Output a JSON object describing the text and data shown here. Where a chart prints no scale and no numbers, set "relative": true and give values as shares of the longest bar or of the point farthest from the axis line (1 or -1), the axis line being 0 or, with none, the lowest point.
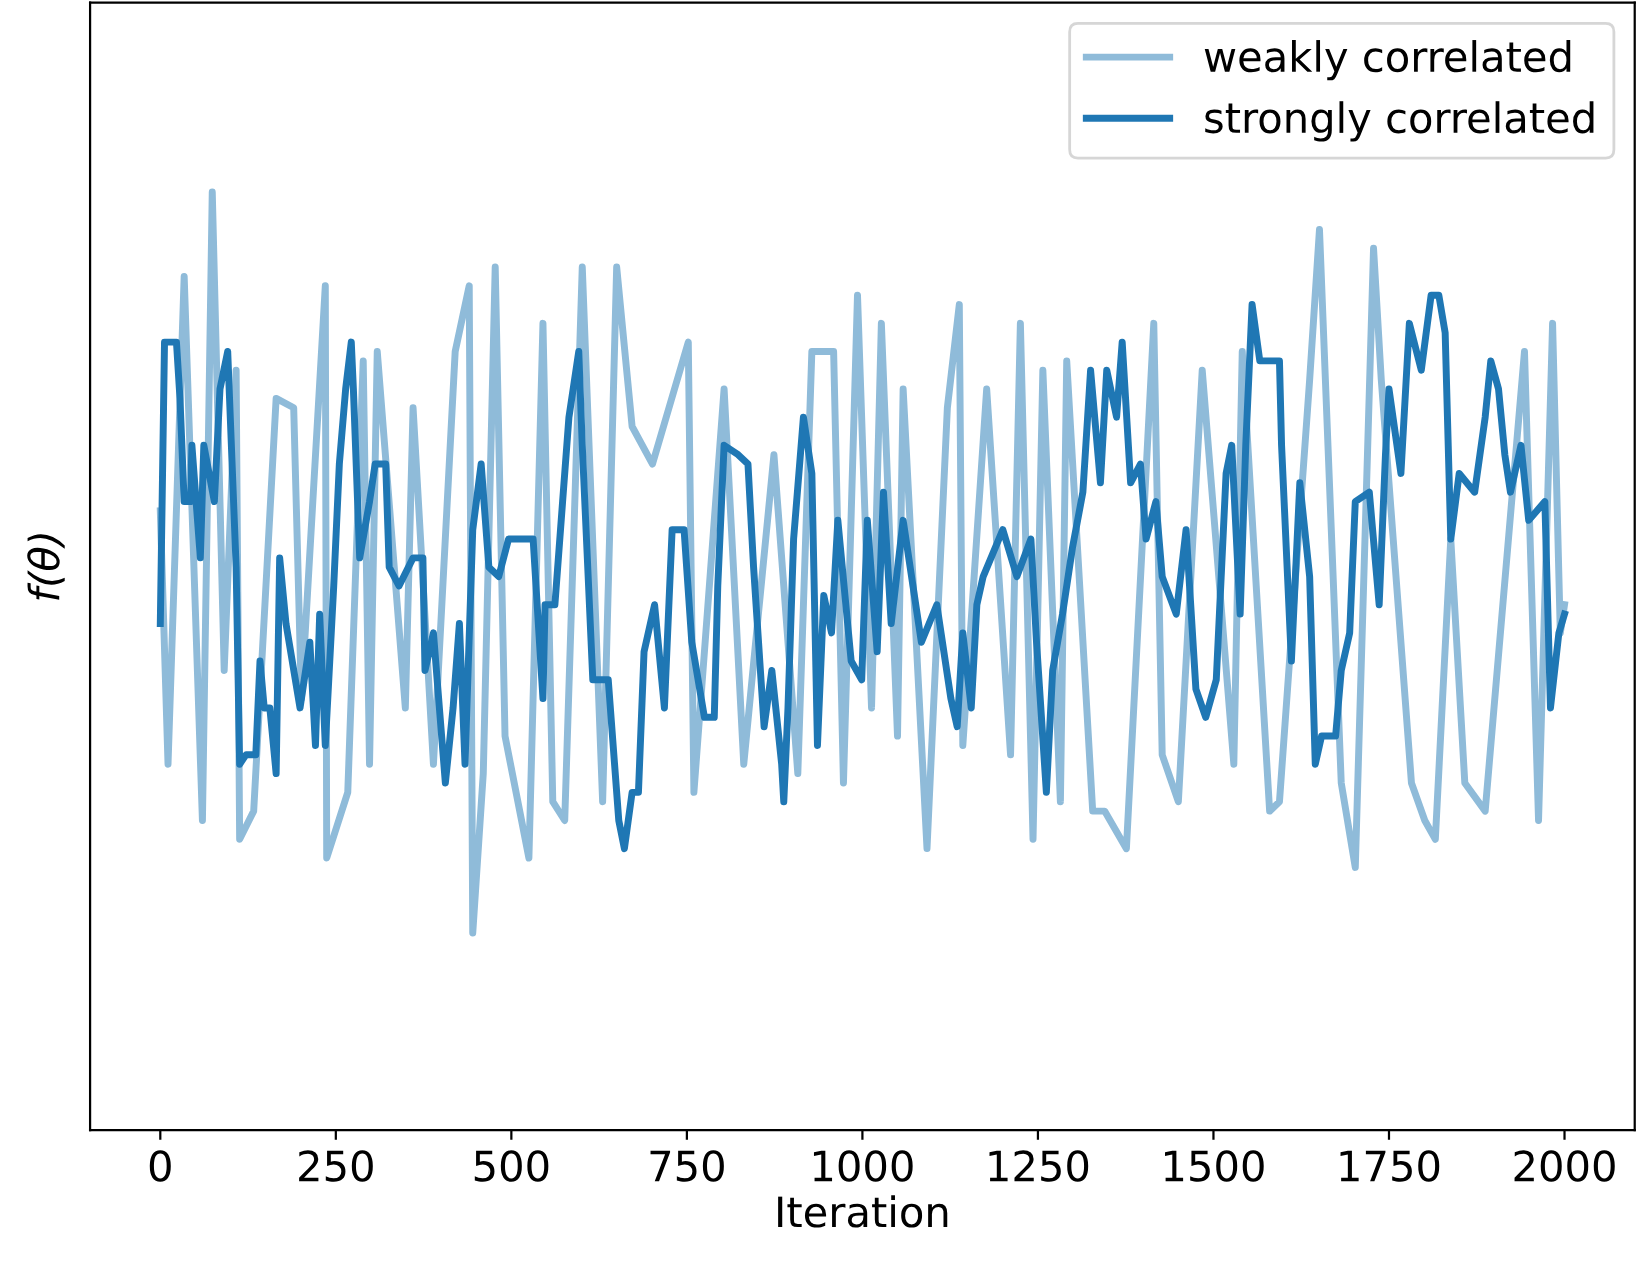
{
  "chart_data": {
    "type": "line",
    "relative": true,
    "xlabel": "Iteration",
    "ylabel": "f(θ)",
    "xlim": [
      -100,
      2100
    ],
    "xticks": [
      0,
      250,
      500,
      750,
      1000,
      1250,
      1500,
      1750,
      2000
    ],
    "grid": false,
    "legend": "top right",
    "marker": "none",
    "line_style": "solid",
    "tick_labels": "x",
    "series": [
      {
        "name": "weakly correlated",
        "color": "#8fbbd9",
        "x": [
          0,
          11,
          34,
          60,
          74,
          91,
          108,
          113,
          133,
          165,
          190,
          201,
          235,
          237,
          267,
          289,
          298,
          309,
          349,
          360,
          389,
          420,
          440,
          445,
          460,
          477,
          491,
          525,
          545,
          559,
          576,
          601,
          630,
          650,
          672,
          701,
          752,
          760,
          803,
          831,
          874,
          908,
          928,
          959,
          973,
          993,
          1013,
          1027,
          1050,
          1058,
          1092,
          1121,
          1138,
          1143,
          1177,
          1211,
          1225,
          1243,
          1257,
          1282,
          1291,
          1328,
          1345,
          1376,
          1415,
          1427,
          1450,
          1484,
          1529,
          1541,
          1580,
          1594,
          1637,
          1651,
          1682,
          1702,
          1728,
          1739,
          1782,
          1801,
          1816,
          1838,
          1858,
          1887,
          1943,
          1963,
          1983,
          1994,
          2000
        ],
        "values": [
          0.66,
          0.39,
          0.91,
          0.33,
          1.0,
          0.49,
          0.81,
          0.31,
          0.34,
          0.78,
          0.77,
          0.46,
          0.9,
          0.29,
          0.36,
          0.82,
          0.39,
          0.83,
          0.45,
          0.77,
          0.39,
          0.83,
          0.9,
          0.21,
          0.38,
          0.92,
          0.42,
          0.29,
          0.86,
          0.35,
          0.33,
          0.92,
          0.35,
          0.92,
          0.75,
          0.71,
          0.84,
          0.36,
          0.79,
          0.39,
          0.72,
          0.38,
          0.83,
          0.83,
          0.37,
          0.89,
          0.45,
          0.86,
          0.42,
          0.79,
          0.3,
          0.77,
          0.88,
          0.41,
          0.79,
          0.4,
          0.86,
          0.31,
          0.81,
          0.35,
          0.82,
          0.34,
          0.34,
          0.3,
          0.86,
          0.4,
          0.35,
          0.81,
          0.39,
          0.83,
          0.34,
          0.35,
          0.8,
          0.96,
          0.37,
          0.28,
          0.94,
          0.8,
          0.37,
          0.33,
          0.31,
          0.63,
          0.37,
          0.34,
          0.83,
          0.33,
          0.86,
          0.53,
          0.56
        ]
      },
      {
        "name": "strongly correlated",
        "color": "#1f77b4",
        "x": [
          0,
          6,
          23,
          28,
          34,
          43,
          45,
          57,
          62,
          77,
          85,
          96,
          108,
          113,
          122,
          136,
          142,
          148,
          156,
          165,
          170,
          179,
          199,
          213,
          221,
          227,
          235,
          247,
          255,
          264,
          272,
          275,
          284,
          298,
          306,
          321,
          326,
          340,
          360,
          374,
          377,
          389,
          406,
          417,
          426,
          434,
          445,
          457,
          468,
          482,
          496,
          531,
          545,
          548,
          562,
          573,
          582,
          596,
          601,
          616,
          638,
          653,
          661,
          672,
          681,
          689,
          704,
          718,
          729,
          746,
          757,
          775,
          789,
          794,
          803,
          823,
          837,
          845,
          860,
          871,
          885,
          888,
          894,
          902,
          916,
          928,
          936,
          945,
          956,
          965,
          984,
          999,
          1007,
          1021,
          1030,
          1041,
          1058,
          1084,
          1106,
          1126,
          1135,
          1143,
          1155,
          1163,
          1172,
          1200,
          1220,
          1240,
          1248,
          1262,
          1271,
          1285,
          1299,
          1314,
          1325,
          1339,
          1348,
          1362,
          1370,
          1382,
          1396,
          1404,
          1418,
          1427,
          1447,
          1461,
          1475,
          1489,
          1504,
          1518,
          1526,
          1538,
          1546,
          1555,
          1566,
          1594,
          1597,
          1611,
          1623,
          1637,
          1645,
          1654,
          1674,
          1682,
          1694,
          1702,
          1722,
          1736,
          1745,
          1750,
          1767,
          1779,
          1796,
          1810,
          1821,
          1830,
          1838,
          1850,
          1872,
          1887,
          1895,
          1906,
          1915,
          1923,
          1938,
          1949,
          1972,
          1980,
          1992,
          2000
        ],
        "values": [
          0.54,
          0.84,
          0.84,
          0.78,
          0.67,
          0.67,
          0.73,
          0.61,
          0.73,
          0.67,
          0.79,
          0.83,
          0.6,
          0.39,
          0.4,
          0.4,
          0.5,
          0.45,
          0.45,
          0.38,
          0.61,
          0.54,
          0.45,
          0.52,
          0.41,
          0.55,
          0.41,
          0.58,
          0.71,
          0.79,
          0.84,
          0.79,
          0.61,
          0.67,
          0.71,
          0.71,
          0.6,
          0.58,
          0.61,
          0.61,
          0.49,
          0.53,
          0.37,
          0.45,
          0.54,
          0.39,
          0.64,
          0.71,
          0.6,
          0.59,
          0.63,
          0.63,
          0.46,
          0.56,
          0.56,
          0.67,
          0.76,
          0.83,
          0.73,
          0.48,
          0.48,
          0.33,
          0.3,
          0.36,
          0.36,
          0.51,
          0.56,
          0.45,
          0.64,
          0.64,
          0.52,
          0.44,
          0.44,
          0.58,
          0.73,
          0.72,
          0.71,
          0.6,
          0.43,
          0.49,
          0.39,
          0.35,
          0.45,
          0.63,
          0.76,
          0.7,
          0.41,
          0.57,
          0.53,
          0.65,
          0.5,
          0.48,
          0.65,
          0.51,
          0.68,
          0.54,
          0.65,
          0.52,
          0.56,
          0.46,
          0.43,
          0.53,
          0.45,
          0.56,
          0.59,
          0.64,
          0.59,
          0.63,
          0.52,
          0.36,
          0.49,
          0.55,
          0.62,
          0.68,
          0.81,
          0.69,
          0.81,
          0.76,
          0.84,
          0.69,
          0.71,
          0.63,
          0.67,
          0.59,
          0.55,
          0.64,
          0.47,
          0.44,
          0.48,
          0.7,
          0.73,
          0.55,
          0.73,
          0.88,
          0.82,
          0.82,
          0.73,
          0.5,
          0.69,
          0.59,
          0.39,
          0.42,
          0.42,
          0.49,
          0.53,
          0.67,
          0.68,
          0.56,
          0.72,
          0.79,
          0.7,
          0.86,
          0.81,
          0.89,
          0.89,
          0.85,
          0.63,
          0.7,
          0.68,
          0.76,
          0.82,
          0.79,
          0.72,
          0.68,
          0.73,
          0.65,
          0.67,
          0.45,
          0.53,
          0.55
        ]
      }
    ]
  }
}
